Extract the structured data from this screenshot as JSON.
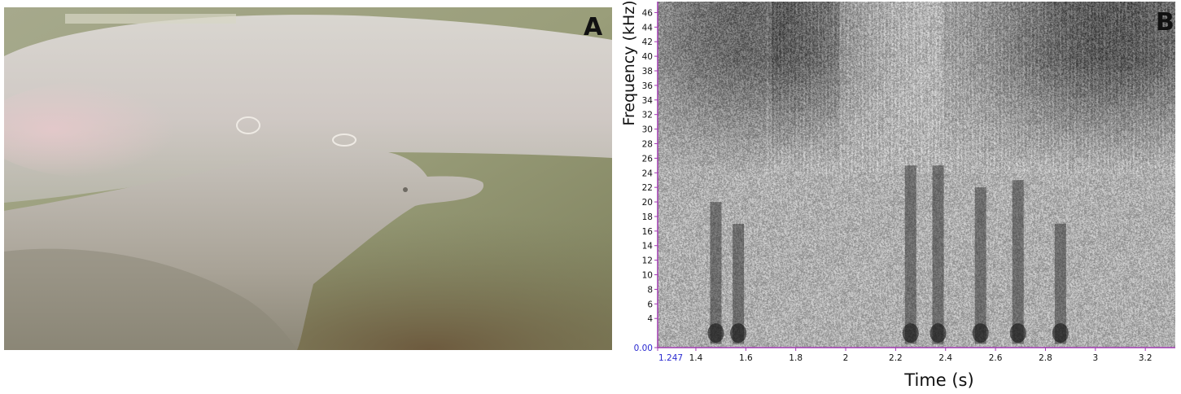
{
  "panel_a": {
    "letter": "A"
  },
  "panel_b": {
    "letter": "B"
  },
  "chart_data": {
    "type": "heatmap",
    "xlabel": "Time (s)",
    "ylabel": "Frequency (kHz)",
    "xlim": [
      1.247,
      3.32
    ],
    "ylim": [
      0,
      47.5
    ],
    "x_ticks": [
      {
        "value": 1.247,
        "label": "1.247",
        "origin": true
      },
      {
        "value": 1.4,
        "label": "1.4"
      },
      {
        "value": 1.6,
        "label": "1.6"
      },
      {
        "value": 1.8,
        "label": "1.8"
      },
      {
        "value": 2.0,
        "label": "2"
      },
      {
        "value": 2.2,
        "label": "2.2"
      },
      {
        "value": 2.4,
        "label": "2.4"
      },
      {
        "value": 2.6,
        "label": "2.6"
      },
      {
        "value": 2.8,
        "label": "2.8"
      },
      {
        "value": 3.0,
        "label": "3"
      },
      {
        "value": 3.2,
        "label": "3.2"
      }
    ],
    "y_ticks": [
      {
        "value": 0,
        "label": "0.00",
        "origin": true
      },
      {
        "value": 4,
        "label": "4"
      },
      {
        "value": 6,
        "label": "6"
      },
      {
        "value": 8,
        "label": "8"
      },
      {
        "value": 10,
        "label": "10"
      },
      {
        "value": 12,
        "label": "12"
      },
      {
        "value": 14,
        "label": "14"
      },
      {
        "value": 16,
        "label": "16"
      },
      {
        "value": 18,
        "label": "18"
      },
      {
        "value": 20,
        "label": "20"
      },
      {
        "value": 22,
        "label": "22"
      },
      {
        "value": 24,
        "label": "24"
      },
      {
        "value": 26,
        "label": "26"
      },
      {
        "value": 28,
        "label": "28"
      },
      {
        "value": 30,
        "label": "30"
      },
      {
        "value": 32,
        "label": "32"
      },
      {
        "value": 34,
        "label": "34"
      },
      {
        "value": 36,
        "label": "36"
      },
      {
        "value": 38,
        "label": "38"
      },
      {
        "value": 40,
        "label": "40"
      },
      {
        "value": 42,
        "label": "42"
      },
      {
        "value": 44,
        "label": "44"
      },
      {
        "value": 46,
        "label": "46"
      }
    ],
    "low_frequency_bursts": [
      {
        "t": 1.48,
        "f_max": 20
      },
      {
        "t": 1.57,
        "f_max": 17
      },
      {
        "t": 2.26,
        "f_max": 25
      },
      {
        "t": 2.37,
        "f_max": 25
      },
      {
        "t": 2.54,
        "f_max": 22
      },
      {
        "t": 2.69,
        "f_max": 23
      },
      {
        "t": 2.86,
        "f_max": 17
      }
    ],
    "high_frequency_band": {
      "f_min": 24,
      "f_max": 47.5
    },
    "axis_color": "#a03ab0"
  }
}
